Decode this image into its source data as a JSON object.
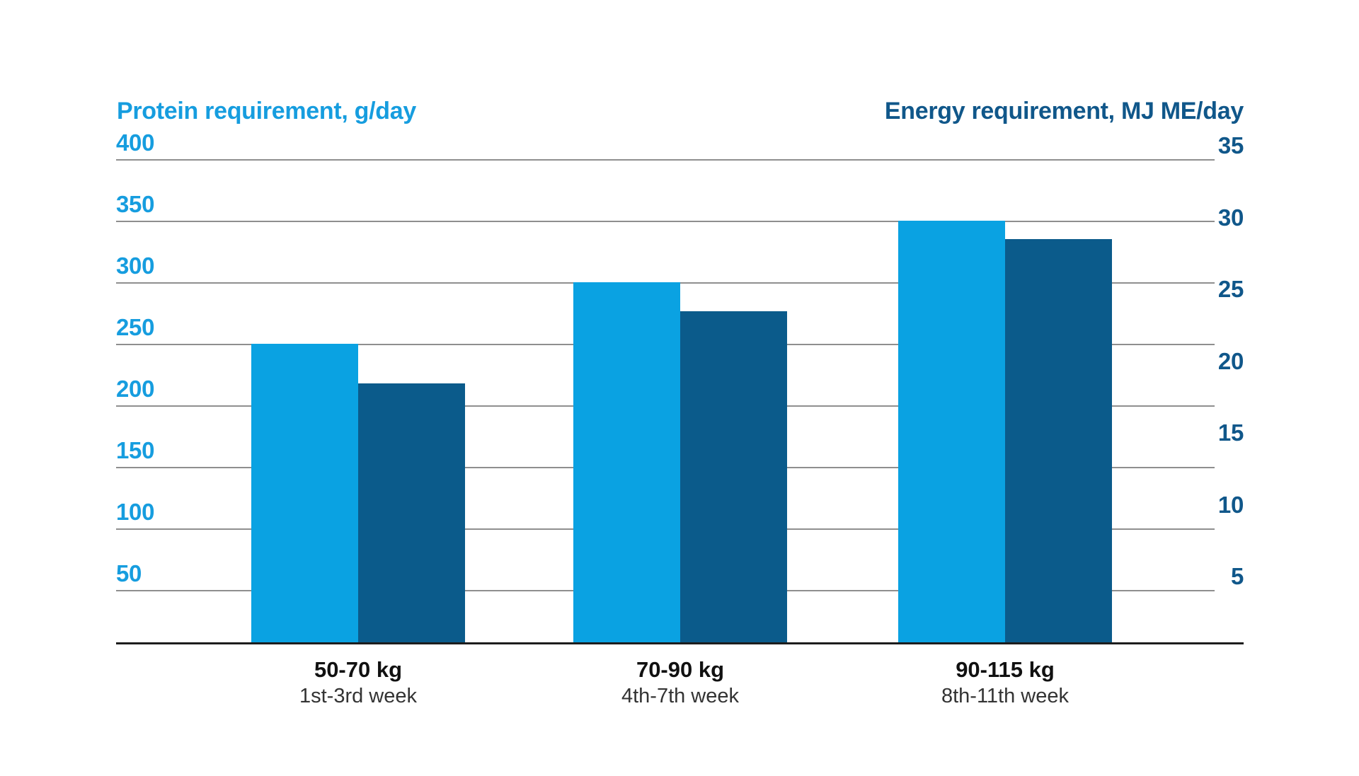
{
  "chart_data": {
    "type": "bar",
    "left_axis_title": "Protein requirement, g/day",
    "right_axis_title": "Energy requirement, MJ ME/day",
    "categories": [
      {
        "weight_range": "50-70 kg",
        "weeks": "1st-3rd week"
      },
      {
        "weight_range": "70-90 kg",
        "weeks": "4th-7th week"
      },
      {
        "weight_range": "90-115 kg",
        "weeks": "8th-11th week"
      }
    ],
    "series": [
      {
        "name": "Protein requirement",
        "unit": "g/day",
        "axis": "left",
        "color": "#0aa2e2",
        "values": [
          250,
          300,
          350
        ]
      },
      {
        "name": "Energy requirement",
        "unit": "MJ ME/day",
        "axis": "right",
        "color": "#0b5b8b",
        "values": [
          20,
          25,
          30
        ]
      }
    ],
    "left_axis": {
      "tick_labels": [
        400,
        350,
        300,
        250,
        200,
        150,
        100,
        50
      ],
      "range": [
        0,
        400
      ],
      "text_color": "#169ddf"
    },
    "right_axis": {
      "tick_labels": [
        35,
        30,
        25,
        20,
        15,
        10,
        5
      ],
      "range": [
        0,
        35
      ],
      "text_color": "#10578a"
    },
    "grid": "horizontal",
    "legend_position": "none"
  },
  "colors": {
    "background": "#ffffff",
    "protein_bar": "#0aa2e2",
    "energy_bar": "#0b5b8b",
    "gridline": "#8f8f8f",
    "axis_line": "#1d1d1d",
    "left_axis_text": "#169ddf",
    "right_axis_text": "#10578a",
    "category_weight_text": "#111111",
    "category_weeks_text": "#333333"
  }
}
